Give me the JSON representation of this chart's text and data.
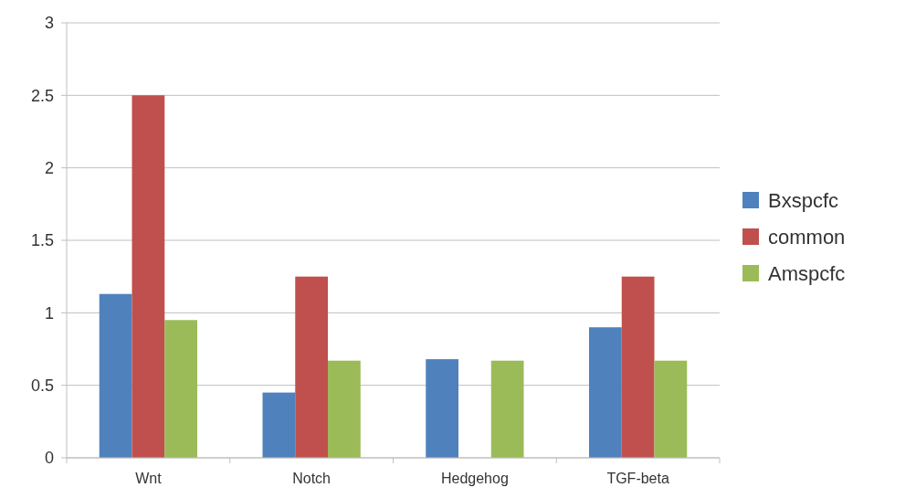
{
  "chart_data": {
    "type": "bar",
    "categories": [
      "Wnt",
      "Notch",
      "Hedgehog",
      "TGF-beta"
    ],
    "series": [
      {
        "name": "Bxspcfc",
        "color": "#4f81bd",
        "values": [
          1.13,
          0.45,
          0.68,
          0.9
        ]
      },
      {
        "name": "common",
        "color": "#c0504d",
        "values": [
          2.5,
          1.25,
          0,
          1.25
        ]
      },
      {
        "name": "Amspcfc",
        "color": "#9bbb59",
        "values": [
          0.95,
          0.67,
          0.67,
          0.67
        ]
      }
    ],
    "ylim": [
      0,
      3
    ],
    "yticks": [
      0,
      0.5,
      1,
      1.5,
      2,
      2.5,
      3
    ],
    "grid": "y",
    "legend": "right"
  }
}
